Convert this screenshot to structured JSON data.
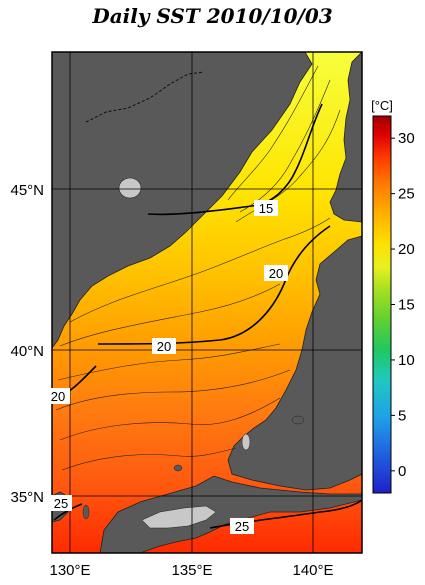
{
  "title": "Daily SST 2010/10/03",
  "map": {
    "lon_labels": [
      "130°E",
      "135°E",
      "140°E"
    ],
    "lat_labels": [
      "45°N",
      "40°N",
      "35°N"
    ],
    "land_color": "#595959",
    "contour_labels": [
      "15",
      "20",
      "20",
      "20",
      "25",
      "25"
    ]
  },
  "colorbar": {
    "unit": "[°C]",
    "ticks": [
      "30",
      "25",
      "20",
      "15",
      "10",
      "5",
      "0"
    ],
    "min": -2,
    "max": 32,
    "colors": [
      "#2020c8",
      "#1f5fe0",
      "#1fa0e8",
      "#20c8c0",
      "#20c860",
      "#60d030",
      "#a8e020",
      "#e8f020",
      "#ffe000",
      "#ffb000",
      "#ff7a00",
      "#ff3a00",
      "#e00000",
      "#a00000"
    ]
  }
}
